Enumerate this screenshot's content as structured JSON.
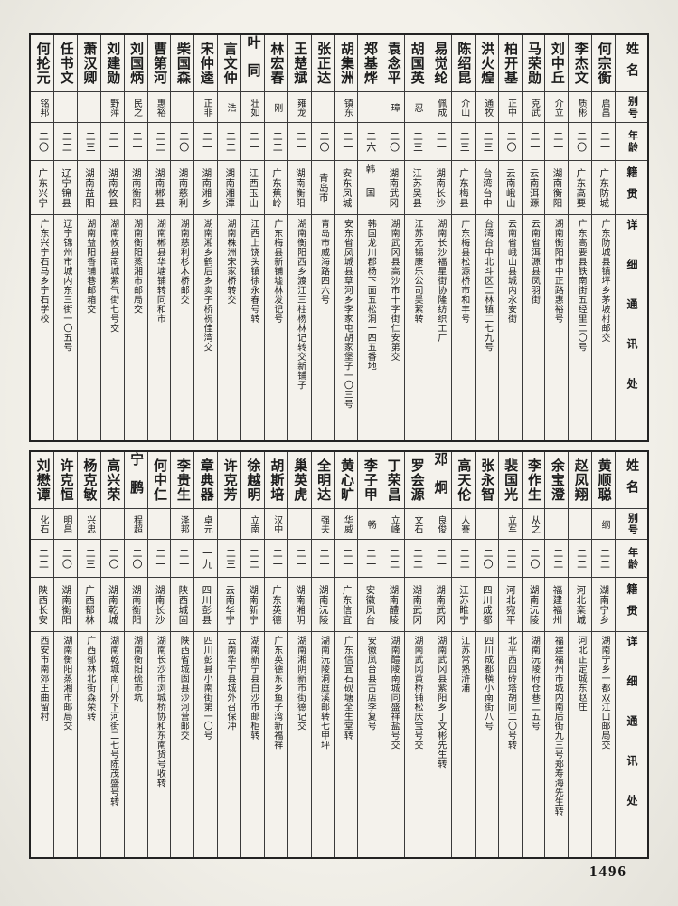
{
  "colors": {
    "paper": "#edebe5",
    "table_paper": "#f4f2ec",
    "ink": "#1c1c1c",
    "grid": "#3a3a3a"
  },
  "page_number": "1496",
  "column_headers": {
    "name": "姓名",
    "alias": "别号",
    "age": "年龄",
    "native": "籍贯",
    "address": "详细通讯处"
  },
  "tables": [
    {
      "entries": [
        {
          "name": "何宗衡",
          "alias": "启昌",
          "age": "二一",
          "native": "广东防城",
          "address": "广东防城县镇坪乡茅坡村邮交"
        },
        {
          "name": "李杰文",
          "alias": "质彬",
          "age": "二〇",
          "native": "广东高要",
          "address": "广东高要县铁南街五经里二〇号"
        },
        {
          "name": "刘中丘",
          "alias": "介立",
          "age": "二一",
          "native": "湖南衡阳",
          "address": "湖南衡阳市中正路惠裕号"
        },
        {
          "name": "马荣勋",
          "alias": "克武",
          "age": "二一",
          "native": "云南洱源",
          "address": "云南省洱源县凤羽街"
        },
        {
          "name": "柏开基",
          "alias": "正中",
          "age": "二〇",
          "native": "云南峨山",
          "address": "云南省峨山县城内永安街"
        },
        {
          "name": "洪火煌",
          "alias": "通牧",
          "age": "二三",
          "native": "台湾台中",
          "address": "台湾台中北斗区二林镇二七九号"
        },
        {
          "name": "陈绍昆",
          "alias": "介山",
          "age": "二三",
          "native": "广东梅县",
          "address": "广东梅县松源桥市和丰号"
        },
        {
          "name": "易觉纶",
          "alias": "佩成",
          "age": "二一",
          "native": "湖南长沙",
          "address": "湖南长沙福星街协隆纺织工厂"
        },
        {
          "name": "胡国英",
          "alias": "忍",
          "age": "二三",
          "native": "江苏吴县",
          "address": "江苏无锡康乐公司吴絜转"
        },
        {
          "name": "袁念平",
          "alias": "璋",
          "age": "二〇",
          "native": "湖南武冈",
          "address": "湖南武冈县高沙市十字街仁安第交"
        },
        {
          "name": "郑基烨",
          "alias": "",
          "age": "二六",
          "native": "韩国",
          "address": "韩国龙川郡杨下面五松洞一四五番地"
        },
        {
          "name": "胡集洲",
          "alias": "镇东",
          "age": "二一",
          "native": "安东凤城",
          "address": "安东省凤城县草河乡李家屯胡家堡子一〇三号"
        },
        {
          "name": "张正达",
          "alias": "",
          "age": "二〇",
          "native": "青岛市",
          "address": "青岛市威海路四六号"
        },
        {
          "name": "王楚斌",
          "alias": "雍龙",
          "age": "二一",
          "native": "湖南衡阳",
          "address": "湖南衡阳西乡渡江三柱杨林记转交新铺子"
        },
        {
          "name": "林宏春",
          "alias": "刚",
          "age": "二二",
          "native": "广东蕉岭",
          "address": "广东梅县新铺墟林发记号"
        },
        {
          "name": "叶同",
          "alias": "壮如",
          "age": "二一",
          "native": "江西玉山",
          "address": "江西上饶头镇徐永春号转"
        },
        {
          "name": "言文仲",
          "alias": "浩",
          "age": "二二",
          "native": "湖南湘潭",
          "address": "湖南株洲宋家桥转交"
        },
        {
          "name": "宋仲逵",
          "alias": "正非",
          "age": "二一",
          "native": "湖南湘乡",
          "address": "湖南湘乡鹤后乡卖子桥祝佳湾交"
        },
        {
          "name": "柴国森",
          "alias": "",
          "age": "二〇",
          "native": "湖南慈利",
          "address": "湖南慈利杉木桥邮交"
        },
        {
          "name": "曹第河",
          "alias": "惠裕",
          "age": "二二",
          "native": "湖南郴县",
          "address": "湖南郴县华塘铺转同和市"
        },
        {
          "name": "刘国炳",
          "alias": "民之",
          "age": "二一",
          "native": "湖南衡阳",
          "address": "湖南衡阳蒸湘市邮局交"
        },
        {
          "name": "刘建勋",
          "alias": "野萍",
          "age": "二一",
          "native": "湖南攸县",
          "address": "湖南攸县南城紫气街七号交"
        },
        {
          "name": "萧汉卿",
          "alias": "",
          "age": "二三",
          "native": "湖南益阳",
          "address": "湖南益阳香铺巷邮箱交"
        },
        {
          "name": "任书文",
          "alias": "",
          "age": "二二",
          "native": "辽宁锦县",
          "address": "辽宁锦州市城内东三街一〇五号"
        },
        {
          "name": "何抡元",
          "alias": "铭邦",
          "age": "二〇",
          "native": "广东兴宁",
          "address": "广东兴宁石马乡宁石学校"
        }
      ]
    },
    {
      "entries": [
        {
          "name": "黄顺聪",
          "alias": "纲",
          "age": "二二",
          "native": "湖南宁乡",
          "address": "湖南宁乡一都双江口邮局交"
        },
        {
          "name": "赵凤翔",
          "alias": "",
          "age": "二二",
          "native": "河北栾城",
          "address": "河北正定城东赵庄"
        },
        {
          "name": "余宝澄",
          "alias": "",
          "age": "二二",
          "native": "福建福州",
          "address": "福建福州市城内南后街九三号郑寿海先生转"
        },
        {
          "name": "李作生",
          "alias": "从之",
          "age": "二〇",
          "native": "湖南沅陵",
          "address": "湖南沅陵府仓巷二五号"
        },
        {
          "name": "裴国光",
          "alias": "立军",
          "age": "二二",
          "native": "河北宛平",
          "address": "北平西四砖塔胡同二〇号转"
        },
        {
          "name": "张永智",
          "alias": "",
          "age": "二〇",
          "native": "四川成都",
          "address": "四川成都横小南街八号"
        },
        {
          "name": "高天伦",
          "alias": "人謇",
          "age": "二二",
          "native": "江苏睢宁",
          "address": "江苏常熟浒浦"
        },
        {
          "name": "邓炯",
          "alias": "良俊",
          "age": "二一",
          "native": "湖南武冈",
          "address": "湖南武冈县紫阳乡丁文彬先生转"
        },
        {
          "name": "罗会源",
          "alias": "文石",
          "age": "二二",
          "native": "湖南武冈",
          "address": "湖南武冈黄桥铺松庆宝号交"
        },
        {
          "name": "丁荣昌",
          "alias": "立峰",
          "age": "二二",
          "native": "湖南醴陵",
          "address": "湖南醴陵南城同盛祥盐号交"
        },
        {
          "name": "李子甲",
          "alias": "畅",
          "age": "二一",
          "native": "安徽凤台",
          "address": "安徽凤台县古店李复号"
        },
        {
          "name": "黄心旷",
          "alias": "华威",
          "age": "二一",
          "native": "广东信宜",
          "address": "广东信宜石砚塘全生堂转"
        },
        {
          "name": "全明达",
          "alias": "强夫",
          "age": "二一",
          "native": "湖南沅陵",
          "address": "湖南沅陵洞庭溪邮转七甲坪"
        },
        {
          "name": "巢英虎",
          "alias": "",
          "age": "二一",
          "native": "湖南湘阴",
          "address": "湖南湘阴新市街德记交"
        },
        {
          "name": "胡斯培",
          "alias": "汉中",
          "age": "二一",
          "native": "广东英德",
          "address": "广东英德东乡鱼子湾新福祥"
        },
        {
          "name": "徐越明",
          "alias": "立南",
          "age": "二二",
          "native": "湖南新宁",
          "address": "湖南新宁县白沙市邮柜转"
        },
        {
          "name": "许克芳",
          "alias": "",
          "age": "二三",
          "native": "云南华宁",
          "address": "云南华宁县城外召保冲"
        },
        {
          "name": "章典器",
          "alias": "卓元",
          "age": "一九",
          "native": "四川彭县",
          "address": "四川彭县小南街第一〇号"
        },
        {
          "name": "李贵生",
          "alias": "泽邦",
          "age": "二一",
          "native": "陕西城固",
          "address": "陕西省城固县沙河营邮交"
        },
        {
          "name": "何中仁",
          "alias": "",
          "age": "二一",
          "native": "湖南长沙",
          "address": "湖南长沙市浏城桥协和东南货号收转"
        },
        {
          "name": "宁鹏",
          "alias": "程超",
          "age": "二〇",
          "native": "湖南衡阳",
          "address": "湖南衡阳硫市坑"
        },
        {
          "name": "高兴荣",
          "alias": "",
          "age": "二〇",
          "native": "湖南乾城",
          "address": "湖南乾城南门外下河街二七号陈茂盛号转"
        },
        {
          "name": "杨克敏",
          "alias": "兴忠",
          "age": "二三",
          "native": "广西郁林",
          "address": "广西郁林北街森荣转"
        },
        {
          "name": "许克恒",
          "alias": "明昌",
          "age": "二〇",
          "native": "湖南衡阳",
          "address": "湖南衡阳蒸湘市邮局交"
        },
        {
          "name": "刘懋谭",
          "alias": "化石",
          "age": "二二",
          "native": "陕西长安",
          "address": "西安市南郊王曲留村"
        }
      ]
    }
  ]
}
